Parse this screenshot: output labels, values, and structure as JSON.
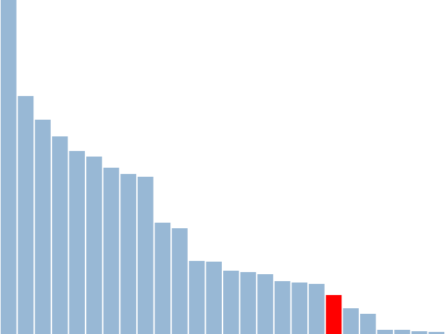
{
  "chart_data": {
    "type": "bar",
    "title": "",
    "xlabel": "",
    "ylabel": "",
    "grid": false,
    "legend": "none",
    "ylim": [
      0,
      480
    ],
    "values": [
      480,
      342,
      308,
      284,
      263,
      255,
      239,
      230,
      226,
      160,
      152,
      105,
      104,
      91,
      89,
      86,
      76,
      74,
      72,
      56,
      37,
      29,
      6,
      6,
      4,
      3
    ],
    "highlight_index": 19,
    "colors": {
      "bar": "#98b8d5",
      "highlight": "#ff0000",
      "background": "#ffffff"
    }
  }
}
